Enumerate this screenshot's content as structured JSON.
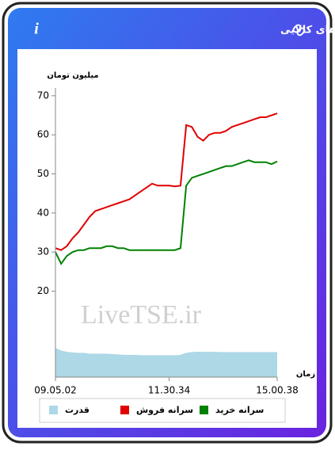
{
  "header": {
    "title": "سرانه ی خرید و فروش حقیقی در صندوق های کالایی",
    "info": "i"
  },
  "chart_data": {
    "type": "line",
    "y_label": "میلیون تومان",
    "x_label": "زمان",
    "watermark": "LiveTSE.ir",
    "x": [
      "09.05.02",
      null,
      null,
      null,
      null,
      null,
      null,
      null,
      null,
      null,
      null,
      null,
      null,
      null,
      null,
      null,
      null,
      null,
      null,
      null,
      "11.30.34",
      null,
      null,
      null,
      null,
      null,
      null,
      null,
      null,
      null,
      null,
      null,
      null,
      null,
      null,
      null,
      null,
      null,
      null,
      "15.00.38"
    ],
    "ylim": [
      -2,
      72
    ],
    "yticks": [
      20,
      30,
      40,
      50,
      60,
      70
    ],
    "series": [
      {
        "name": "سرانه خرید",
        "color": "#008000",
        "kind": "line",
        "values": [
          30,
          27,
          29,
          30,
          30.5,
          30.5,
          31,
          31,
          31,
          31.5,
          31.5,
          31,
          31,
          30.5,
          30.5,
          30.5,
          30.5,
          30.5,
          30.5,
          30.5,
          30.5,
          30.5,
          31,
          47,
          49,
          49.5,
          50,
          50.5,
          51,
          51.5,
          52,
          52,
          52.5,
          53,
          53.5,
          53,
          53,
          53,
          52.5,
          53.2
        ]
      },
      {
        "name": "سرانه فروش",
        "color": "#e00000",
        "kind": "line",
        "values": [
          31,
          30.5,
          31.5,
          33.5,
          35,
          37,
          39,
          40.5,
          41,
          41.5,
          42,
          42.5,
          43,
          43.5,
          44.5,
          45.5,
          46.5,
          47.5,
          47,
          47,
          47,
          46.8,
          47,
          62.5,
          62,
          59.5,
          58.5,
          60,
          60.5,
          60.5,
          61,
          62,
          62.5,
          63,
          63.5,
          64,
          64.5,
          64.5,
          65,
          65.5
        ]
      },
      {
        "name": "قدرت",
        "color": "#add8e6",
        "kind": "area",
        "values": [
          5.5,
          4.8,
          4.5,
          4.3,
          4.2,
          4.2,
          4,
          4,
          4,
          4,
          3.9,
          3.8,
          3.7,
          3.7,
          3.7,
          3.6,
          3.6,
          3.6,
          3.6,
          3.6,
          3.6,
          3.6,
          3.7,
          4.2,
          4.4,
          4.5,
          4.5,
          4.5,
          4.5,
          4.4,
          4.4,
          4.4,
          4.4,
          4.4,
          4.4,
          4.4,
          4.4,
          4.4,
          4.4,
          4.4
        ]
      }
    ]
  }
}
